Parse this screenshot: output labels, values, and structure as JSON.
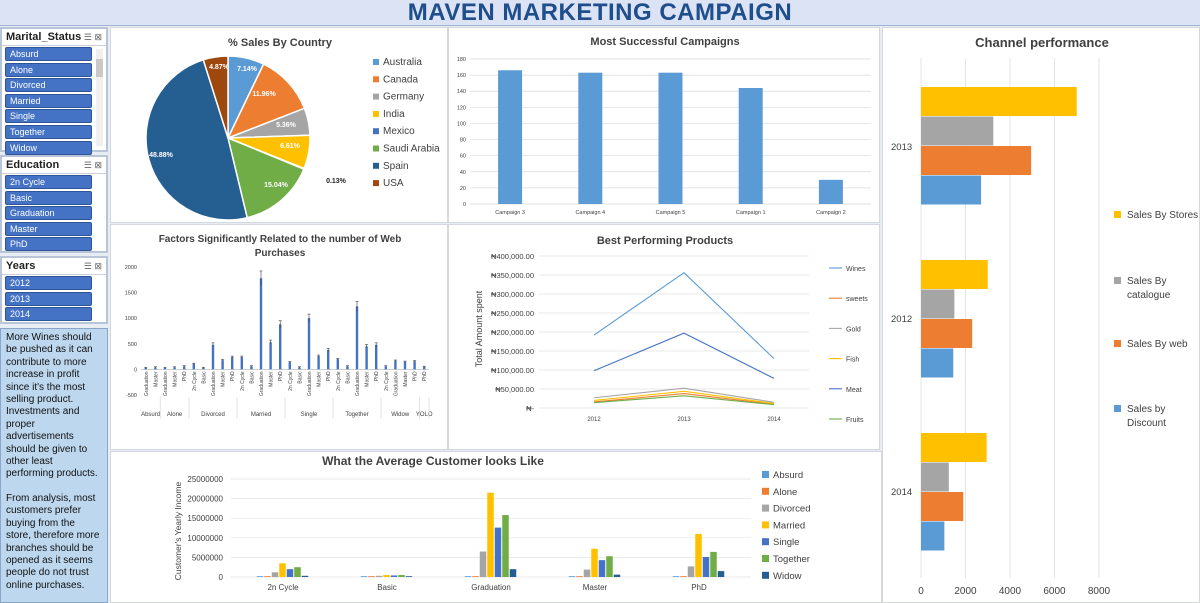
{
  "title": "MAVEN MARKETING CAMPAIGN",
  "slicers": {
    "marital": {
      "title": "Marital_Status",
      "items": [
        "Absurd",
        "Alone",
        "Divorced",
        "Married",
        "Single",
        "Together",
        "Widow"
      ]
    },
    "education": {
      "title": "Education",
      "items": [
        "2n Cycle",
        "Basic",
        "Graduation",
        "Master",
        "PhD"
      ]
    },
    "years": {
      "title": "Years",
      "items": [
        "2012",
        "2013",
        "2014"
      ]
    }
  },
  "notes": {
    "p1": "More Wines should be pushed as it can contribute to more increase in profit since it's the most selling product. Investments and proper advertisements should be given to other least performing products.",
    "p2": "From analysis, most customers prefer buying from the store, therefore more branches should be opened as it seems people do not trust online purchases."
  },
  "colors": {
    "blue": "#5b9bd5",
    "orange": "#ed7d31",
    "gray": "#a5a5a5",
    "yellow": "#ffc000",
    "darkblue": "#4472c4",
    "green": "#70ad47",
    "navy": "#255e91",
    "brown": "#9e480e"
  },
  "chart_data": [
    {
      "id": "pie",
      "type": "pie",
      "title": "% Sales By Country",
      "categories": [
        "Australia",
        "Canada",
        "Germany",
        "India",
        "Mexico",
        "Saudi Arabia",
        "Spain",
        "USA"
      ],
      "values": [
        7.14,
        11.96,
        5.36,
        6.61,
        0.13,
        15.04,
        48.88,
        4.87
      ],
      "labels": [
        "7.14%",
        "11.96%",
        "5.36%",
        "6.61%",
        "0.13%",
        "15.04%",
        "48.88%",
        "4.87%"
      ],
      "legend": "right"
    },
    {
      "id": "campaigns",
      "type": "bar",
      "title": "Most Successful Campaigns",
      "categories": [
        "Campaign 3",
        "Campaign 4",
        "Campaign 5",
        "Campaign 1",
        "Campaign 2"
      ],
      "values": [
        166,
        163,
        163,
        144,
        30
      ],
      "ylim": [
        0,
        180
      ],
      "yticks": [
        "0",
        "20",
        "40",
        "60",
        "80",
        "100",
        "120",
        "140",
        "160",
        "180"
      ]
    },
    {
      "id": "web",
      "type": "bar",
      "title": "Factors Significantly Related to the number of Web Purchases",
      "ylim": [
        -500,
        2000
      ],
      "yticks": [
        "-500",
        "0",
        "500",
        "1000",
        "1500",
        "2000"
      ],
      "groups": [
        {
          "name": "Absurd",
          "categories": [
            "Graduation",
            "Master"
          ],
          "values": [
            30,
            40
          ]
        },
        {
          "name": "Alone",
          "categories": [
            "Graduation",
            "Master",
            "PhD"
          ],
          "values": [
            30,
            40,
            60
          ]
        },
        {
          "name": "Divorced",
          "categories": [
            "2n Cycle",
            "Basic",
            "Graduation",
            "Master",
            "PhD"
          ],
          "values": [
            110,
            30,
            480,
            180,
            240
          ]
        },
        {
          "name": "Married",
          "categories": [
            "2n Cycle",
            "Basic",
            "Graduation",
            "Master",
            "PhD"
          ],
          "values": [
            240,
            60,
            1780,
            530,
            880
          ]
        },
        {
          "name": "Single",
          "categories": [
            "2n Cycle",
            "Basic",
            "Graduation",
            "Master",
            "PhD"
          ],
          "values": [
            140,
            40,
            1000,
            260,
            380
          ]
        },
        {
          "name": "Together",
          "categories": [
            "2n Cycle",
            "Basic",
            "Graduation",
            "Master",
            "PhD"
          ],
          "values": [
            200,
            60,
            1230,
            450,
            480
          ]
        },
        {
          "name": "Widow",
          "categories": [
            "2n Cycle",
            "Graduation",
            "Master",
            "PhD"
          ],
          "values": [
            60,
            170,
            150,
            160
          ]
        },
        {
          "name": "YOLO",
          "categories": [
            "PhD"
          ],
          "values": [
            50
          ]
        }
      ]
    },
    {
      "id": "products",
      "type": "line",
      "title": "Best Performing Products",
      "ylabel": "Total Amount spent",
      "x": [
        "2012",
        "2013",
        "2014"
      ],
      "ylim": [
        0,
        400000
      ],
      "yticks": [
        "₦-",
        "₦50,000.00",
        "₦100,000.00",
        "₦150,000.00",
        "₦200,000.00",
        "₦250,000.00",
        "₦300,000.00",
        "₦350,000.00",
        "₦400,000.00"
      ],
      "series": [
        {
          "name": "Wines",
          "values": [
            192000,
            356000,
            130000
          ]
        },
        {
          "name": "sweets",
          "values": [
            16000,
            38000,
            10000
          ]
        },
        {
          "name": "Gold",
          "values": [
            27000,
            52000,
            15000
          ]
        },
        {
          "name": "Fish",
          "values": [
            20000,
            44000,
            12000
          ]
        },
        {
          "name": "Meat",
          "values": [
            98000,
            197000,
            78000
          ]
        },
        {
          "name": "Fruits",
          "values": [
            14000,
            32000,
            9000
          ]
        }
      ]
    },
    {
      "id": "customer",
      "type": "bar",
      "title": "What the Average Customer looks Like",
      "ylabel": "Customer's Yearly Income",
      "categories": [
        "2n Cycle",
        "Basic",
        "Graduation",
        "Master",
        "PhD"
      ],
      "ylim": [
        0,
        25000000
      ],
      "yticks": [
        "0",
        "5000000",
        "10000000",
        "15000000",
        "20000000",
        "25000000"
      ],
      "series": [
        {
          "name": "Absurd",
          "values": [
            0,
            0,
            0,
            0,
            0
          ]
        },
        {
          "name": "Alone",
          "values": [
            0,
            0,
            0,
            0,
            0
          ]
        },
        {
          "name": "Divorced",
          "values": [
            1200000,
            300000,
            6500000,
            1900000,
            2700000
          ]
        },
        {
          "name": "Married",
          "values": [
            3500000,
            500000,
            21500000,
            7200000,
            11000000
          ]
        },
        {
          "name": "Single",
          "values": [
            2000000,
            400000,
            12600000,
            4300000,
            5100000
          ]
        },
        {
          "name": "Together",
          "values": [
            2500000,
            500000,
            15800000,
            5300000,
            6400000
          ]
        },
        {
          "name": "Widow",
          "values": [
            300000,
            0,
            2000000,
            600000,
            1500000
          ]
        }
      ]
    },
    {
      "id": "channel",
      "type": "bar",
      "title": "Channel performance",
      "categories": [
        "2013",
        "2012",
        "2014"
      ],
      "xlim": [
        0,
        8000
      ],
      "xticks": [
        "0",
        "2000",
        "4000",
        "6000",
        "8000"
      ],
      "series": [
        {
          "name": "Sales By Stores",
          "values": [
            7000,
            3000,
            2950
          ]
        },
        {
          "name": "Sales By catalogue",
          "values": [
            3250,
            1500,
            1250
          ]
        },
        {
          "name": "Sales By web",
          "values": [
            4950,
            2300,
            1900
          ]
        },
        {
          "name": "Sales by Discount",
          "values": [
            2700,
            1450,
            1050
          ]
        }
      ]
    }
  ]
}
